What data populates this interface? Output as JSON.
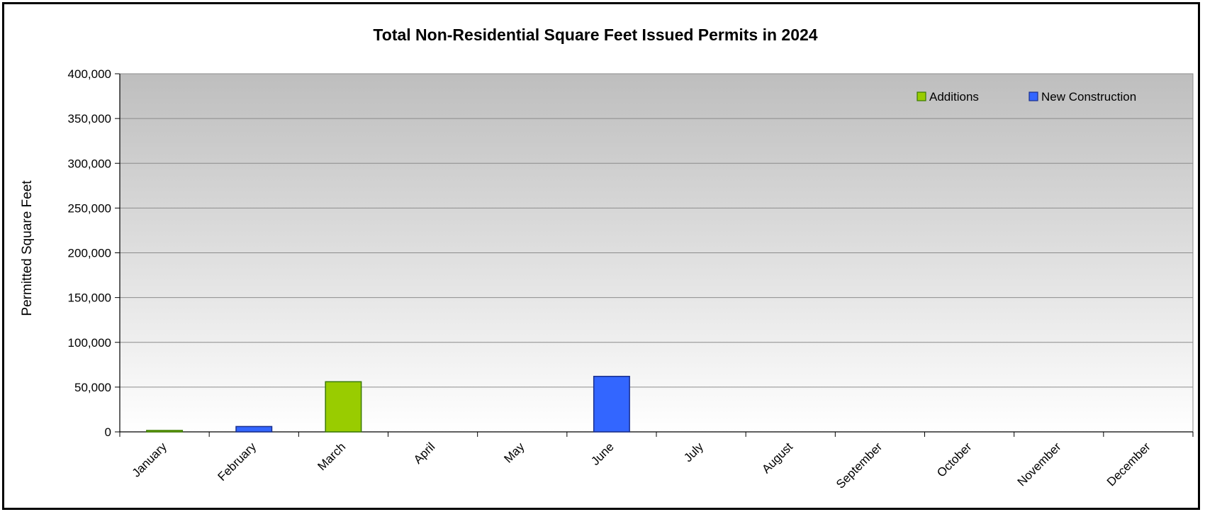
{
  "chart_data": {
    "type": "bar",
    "title": "Total Non-Residential Square Feet Issued Permits in 2024",
    "xlabel": "",
    "ylabel": "Permitted Square Feet",
    "ylim": [
      0,
      400000
    ],
    "yticks": [
      0,
      50000,
      100000,
      150000,
      200000,
      250000,
      300000,
      350000,
      400000
    ],
    "ytick_labels": [
      "0",
      "50,000",
      "100,000",
      "150,000",
      "200,000",
      "250,000",
      "300,000",
      "350,000",
      "400,000"
    ],
    "categories": [
      "January",
      "February",
      "March",
      "April",
      "May",
      "June",
      "July",
      "August",
      "September",
      "October",
      "November",
      "December"
    ],
    "grid": true,
    "legend_position": "top-right",
    "series": [
      {
        "name": "Additions",
        "color": "#99CC00",
        "stroke": "#3A7A00",
        "values": [
          1000,
          0,
          56000,
          0,
          0,
          0,
          0,
          0,
          0,
          0,
          0,
          0
        ]
      },
      {
        "name": "New Construction",
        "color": "#3366FF",
        "stroke": "#1A2F8C",
        "values": [
          0,
          6000,
          0,
          0,
          0,
          62000,
          0,
          0,
          0,
          0,
          0,
          0
        ]
      }
    ]
  }
}
